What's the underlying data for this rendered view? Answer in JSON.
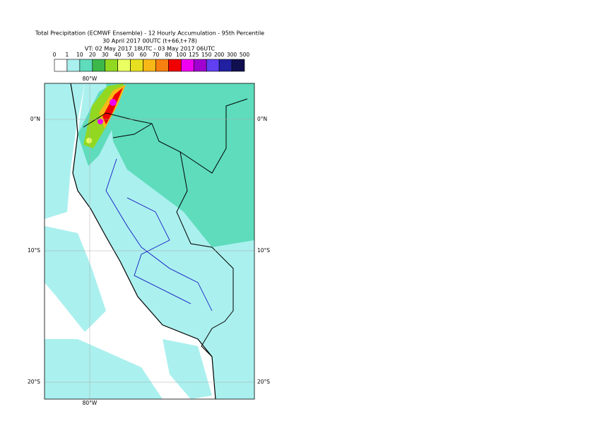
{
  "header": {
    "lines": [
      "Total Precipitation (ECMWF Ensemble) - 12 Hourly Accumulation - 95th Percentile",
      "30 April 2017 00UTC (t+66,t+78)",
      "VT: 02 May 2017 18UTC - 03 May 2017 06UTC"
    ]
  },
  "colorbar": {
    "ticks": [
      "0",
      "1",
      "10",
      "20",
      "30",
      "40",
      "50",
      "60",
      "70",
      "80",
      "100",
      "125",
      "150",
      "200",
      "300",
      "500"
    ],
    "colors": [
      "#ffffff",
      "#aaf0ee",
      "#5edcbc",
      "#3cb84a",
      "#92d820",
      "#eaff62",
      "#e6e020",
      "#f8b818",
      "#f88010",
      "#f00000",
      "#f000f0",
      "#a000d0",
      "#6040f0",
      "#2020a0",
      "#101050"
    ]
  },
  "map": {
    "lat_labels": [
      "0°N",
      "10°S",
      "20°S"
    ],
    "lon_label": "80°W"
  }
}
